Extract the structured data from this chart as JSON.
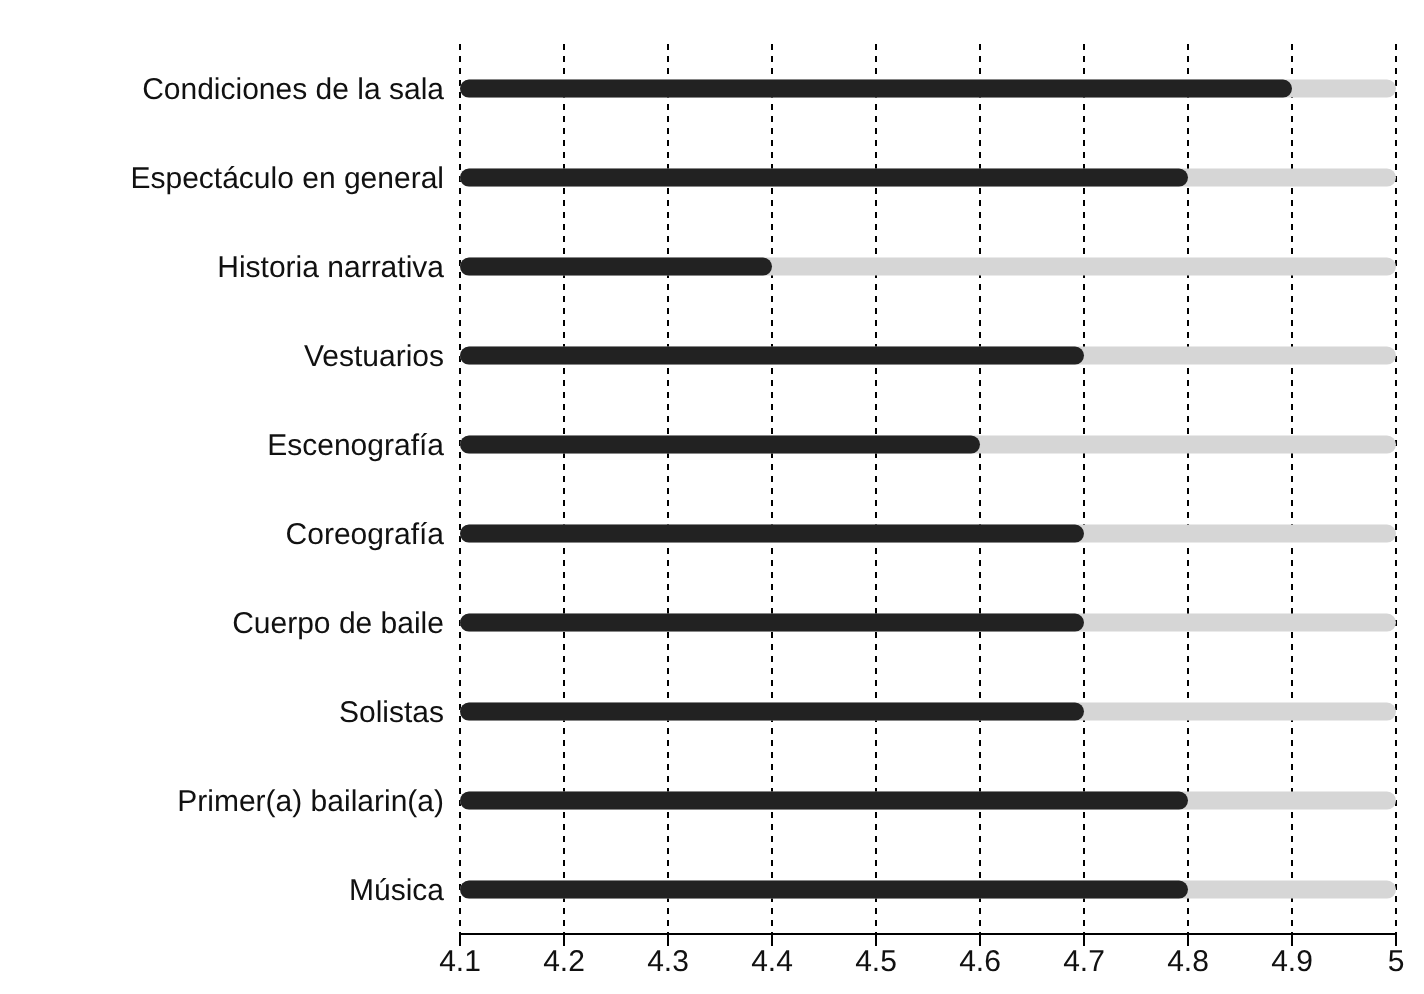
{
  "chart_data": {
    "type": "bar",
    "orientation": "horizontal",
    "categories": [
      "Condiciones de la sala",
      "Espectáculo en general",
      "Historia narrativa",
      "Vestuarios",
      "Escenografía",
      "Coreografía",
      "Cuerpo de baile",
      "Solistas",
      "Primer(a) bailarin(a)",
      "Música"
    ],
    "values": [
      4.9,
      4.8,
      4.4,
      4.7,
      4.6,
      4.7,
      4.7,
      4.7,
      4.8,
      4.8
    ],
    "color": "#222222",
    "xlim": [
      4.1,
      5
    ],
    "xticks": [
      4.1,
      4.2,
      4.3,
      4.4,
      4.5,
      4.6,
      4.7,
      4.8,
      4.9,
      5
    ],
    "grid": "x"
  }
}
